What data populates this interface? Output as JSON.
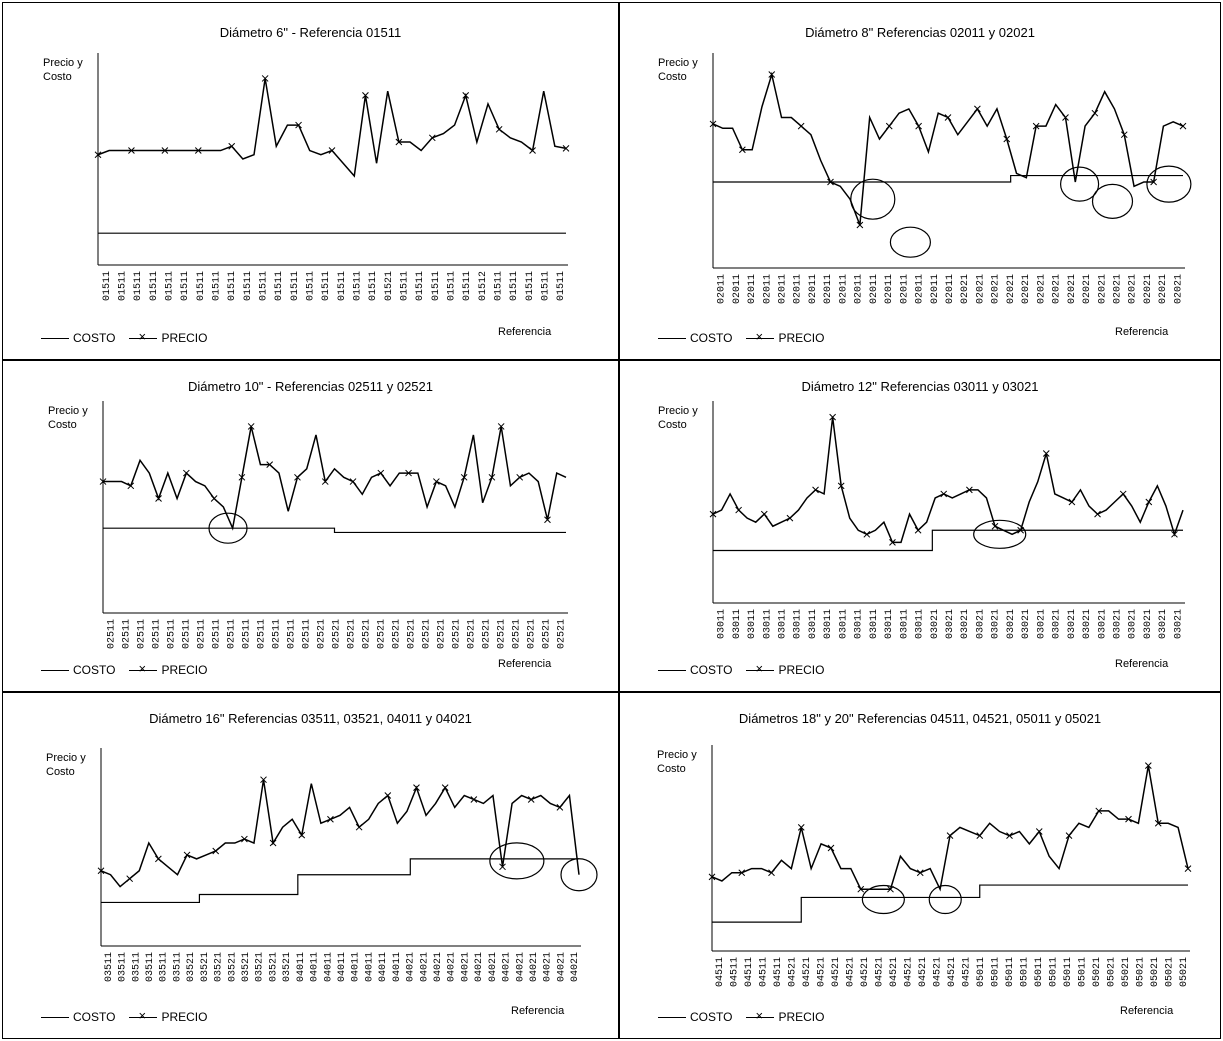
{
  "legend": {
    "costo": "COSTO",
    "precio": "PRECIO"
  },
  "colors": {
    "line": "#000000",
    "background": "#ffffff",
    "circle": "#000000"
  },
  "panels": [
    {
      "title": "Diámetro 6\"  - Referencia 01511",
      "ylabel_line1": "Precio y",
      "ylabel_line2": "Costo",
      "xlabel": "Referencia",
      "ticks": [
        "01511",
        "01511",
        "01511",
        "01511",
        "01511",
        "01511",
        "01511",
        "01511",
        "01511",
        "01511",
        "01511",
        "01511",
        "01511",
        "01511",
        "01511",
        "01511",
        "01511",
        "01511",
        "01521",
        "01511",
        "01511",
        "01511",
        "01511",
        "01511",
        "01512",
        "01511",
        "01511",
        "01511",
        "01511",
        "01511"
      ],
      "chart_data": {
        "type": "line",
        "ylim": [
          0,
          100
        ],
        "series": [
          {
            "name": "COSTO",
            "values": [
              15,
              15,
              15,
              15,
              15,
              15,
              15,
              15,
              15,
              15,
              15,
              15,
              15,
              15,
              15,
              15,
              15,
              15,
              15,
              15,
              15,
              15,
              15,
              15,
              15,
              15,
              15,
              15,
              15,
              15
            ]
          },
          {
            "name": "PRECIO",
            "values": [
              52,
              54,
              54,
              54,
              54,
              54,
              54,
              54,
              54,
              54,
              54,
              54,
              56,
              50,
              52,
              88,
              56,
              66,
              66,
              54,
              52,
              54,
              48,
              42,
              80,
              48,
              82,
              58,
              58,
              54,
              60,
              62,
              66,
              80,
              58,
              76,
              64,
              60,
              58,
              54,
              82,
              56,
              55
            ]
          }
        ],
        "circles": []
      }
    },
    {
      "title": "Diámetro 8\"  Referencias 02011 y 02021",
      "ylabel_line1": "Precio y",
      "ylabel_line2": "Costo",
      "xlabel": "Referencia",
      "ticks": [
        "02011",
        "02011",
        "02011",
        "02011",
        "02011",
        "02011",
        "02011",
        "02011",
        "02011",
        "02011",
        "02011",
        "02011",
        "02011",
        "02011",
        "02011",
        "02011",
        "02021",
        "02021",
        "02021",
        "02021",
        "02021",
        "02021",
        "02021",
        "02021",
        "02021",
        "02021",
        "02021",
        "02021",
        "02021",
        "02021",
        "02021"
      ],
      "chart_data": {
        "type": "line",
        "ylim": [
          0,
          100
        ],
        "series": [
          {
            "name": "COSTO",
            "values": [
              40,
              40,
              40,
              40,
              40,
              40,
              40,
              40,
              40,
              40,
              40,
              40,
              40,
              40,
              40,
              40,
              40,
              40,
              40,
              43,
              43,
              43,
              43,
              43,
              43,
              43,
              43,
              43,
              43,
              43,
              43
            ]
          },
          {
            "name": "PRECIO",
            "values": [
              67,
              65,
              65,
              55,
              55,
              75,
              90,
              70,
              70,
              66,
              62,
              50,
              40,
              38,
              32,
              20,
              70,
              60,
              66,
              72,
              74,
              66,
              54,
              72,
              70,
              62,
              68,
              74,
              66,
              74,
              60,
              44,
              42,
              66,
              66,
              76,
              70,
              40,
              66,
              72,
              82,
              74,
              62,
              38,
              40,
              40,
              66,
              68,
              66
            ]
          }
        ],
        "circles": [
          {
            "i": 0.34,
            "v": 32,
            "rx": 22,
            "ry": 20
          },
          {
            "i": 0.42,
            "v": 12,
            "rx": 20,
            "ry": 15
          },
          {
            "i": 0.78,
            "v": 39,
            "rx": 19,
            "ry": 17
          },
          {
            "i": 0.85,
            "v": 31,
            "rx": 20,
            "ry": 17
          },
          {
            "i": 0.97,
            "v": 39,
            "rx": 22,
            "ry": 18
          }
        ]
      }
    },
    {
      "title": "Diámetro 10\" -  Referencias 02511 y 02521",
      "ylabel_line1": "Precio y",
      "ylabel_line2": "Costo",
      "xlabel": "Referencia",
      "ticks": [
        "02511",
        "02511",
        "02511",
        "02511",
        "02511",
        "02511",
        "02511",
        "02511",
        "02511",
        "02511",
        "02511",
        "02511",
        "02511",
        "02511",
        "02521",
        "02521",
        "02521",
        "02521",
        "02521",
        "02521",
        "02521",
        "02521",
        "02521",
        "02521",
        "02521",
        "02521",
        "02521",
        "02521",
        "02521",
        "02521",
        "02521"
      ],
      "chart_data": {
        "type": "line",
        "ylim": [
          0,
          100
        ],
        "series": [
          {
            "name": "COSTO",
            "values": [
              40,
              40,
              40,
              40,
              40,
              40,
              40,
              40,
              40,
              40,
              40,
              40,
              40,
              40,
              40,
              38,
              38,
              38,
              38,
              38,
              38,
              38,
              38,
              38,
              38,
              38,
              38,
              38,
              38,
              38,
              38
            ]
          },
          {
            "name": "PRECIO",
            "values": [
              62,
              62,
              62,
              60,
              72,
              66,
              54,
              66,
              54,
              66,
              62,
              60,
              54,
              50,
              40,
              64,
              88,
              70,
              70,
              66,
              48,
              64,
              68,
              84,
              62,
              68,
              64,
              62,
              56,
              64,
              66,
              60,
              66,
              66,
              66,
              50,
              62,
              60,
              50,
              64,
              84,
              52,
              64,
              88,
              60,
              64,
              66,
              62,
              44,
              66,
              64
            ]
          }
        ],
        "circles": [
          {
            "i": 0.27,
            "v": 40,
            "rx": 19,
            "ry": 15
          }
        ]
      }
    },
    {
      "title": "Diámetro 12\" Referencias  03011 y 03021",
      "ylabel_line1": "Precio y",
      "ylabel_line2": "Costo",
      "xlabel": "Referencia",
      "ticks": [
        "03011",
        "03011",
        "03011",
        "03011",
        "03011",
        "03011",
        "03011",
        "03011",
        "03011",
        "03011",
        "03011",
        "03011",
        "03011",
        "03011",
        "03021",
        "03021",
        "03021",
        "03021",
        "03021",
        "03021",
        "03021",
        "03021",
        "03021",
        "03021",
        "03021",
        "03021",
        "03021",
        "03021",
        "03021",
        "03021",
        "03021"
      ],
      "chart_data": {
        "type": "line",
        "ylim": [
          0,
          100
        ],
        "series": [
          {
            "name": "COSTO",
            "values": [
              26,
              26,
              26,
              26,
              26,
              26,
              26,
              26,
              26,
              26,
              26,
              26,
              26,
              26,
              36,
              36,
              36,
              36,
              36,
              36,
              36,
              36,
              36,
              36,
              36,
              36,
              36,
              36,
              36,
              36,
              36
            ]
          },
          {
            "name": "PRECIO",
            "values": [
              44,
              46,
              54,
              46,
              42,
              40,
              44,
              38,
              40,
              42,
              46,
              52,
              56,
              54,
              92,
              58,
              42,
              36,
              34,
              36,
              40,
              30,
              30,
              44,
              36,
              40,
              52,
              54,
              52,
              54,
              56,
              56,
              52,
              38,
              36,
              34,
              36,
              50,
              60,
              74,
              54,
              52,
              50,
              56,
              48,
              44,
              46,
              50,
              54,
              48,
              40,
              50,
              58,
              48,
              34,
              46
            ]
          }
        ],
        "circles": [
          {
            "i": 0.61,
            "v": 34,
            "rx": 26,
            "ry": 14
          }
        ]
      }
    },
    {
      "title": "Diámetro 16\" Referencias 03511, 03521, 04011 y 04021",
      "ylabel_line1": "Precio y",
      "ylabel_line2": "Costo",
      "xlabel": "Referencia",
      "ticks": [
        "03511",
        "03511",
        "03511",
        "03511",
        "03511",
        "03511",
        "03521",
        "03521",
        "03521",
        "03521",
        "03521",
        "03521",
        "03521",
        "03521",
        "04011",
        "04011",
        "04011",
        "04011",
        "04011",
        "04011",
        "04011",
        "04011",
        "04021",
        "04021",
        "04021",
        "04021",
        "04021",
        "04021",
        "04021",
        "04021",
        "04021",
        "04021",
        "04021",
        "04021",
        "04021"
      ],
      "chart_data": {
        "type": "line",
        "ylim": [
          0,
          100
        ],
        "series": [
          {
            "name": "COSTO",
            "values": [
              22,
              22,
              22,
              22,
              22,
              22,
              22,
              26,
              26,
              26,
              26,
              26,
              26,
              26,
              36,
              36,
              36,
              36,
              36,
              36,
              36,
              36,
              44,
              44,
              44,
              44,
              44,
              44,
              44,
              44,
              44,
              44,
              44,
              44,
              44
            ]
          },
          {
            "name": "PRECIO",
            "values": [
              38,
              36,
              30,
              34,
              38,
              52,
              44,
              40,
              36,
              46,
              44,
              46,
              48,
              52,
              52,
              54,
              52,
              84,
              52,
              60,
              64,
              56,
              82,
              62,
              64,
              66,
              70,
              60,
              64,
              72,
              76,
              62,
              68,
              80,
              66,
              72,
              80,
              70,
              76,
              74,
              72,
              76,
              40,
              72,
              76,
              74,
              76,
              72,
              70,
              76,
              36
            ]
          }
        ],
        "circles": [
          {
            "i": 0.87,
            "v": 43,
            "rx": 27,
            "ry": 18
          },
          {
            "i": 1.0,
            "v": 36,
            "rx": 18,
            "ry": 16
          }
        ]
      }
    },
    {
      "title": "Diámetros 18\" y 20\" Referencias  04511, 04521, 05011 y 05021",
      "ylabel_line1": "Precio y",
      "ylabel_line2": "Costo",
      "xlabel": "Referencia",
      "ticks": [
        "04511",
        "04511",
        "04511",
        "04511",
        "04511",
        "04521",
        "04521",
        "04521",
        "04521",
        "04521",
        "04521",
        "04521",
        "04521",
        "04521",
        "04521",
        "04521",
        "04521",
        "04521",
        "05011",
        "05011",
        "05011",
        "05011",
        "05011",
        "05011",
        "05011",
        "05011",
        "05021",
        "05021",
        "05021",
        "05021",
        "05021",
        "05021",
        "05021"
      ],
      "chart_data": {
        "type": "line",
        "ylim": [
          0,
          100
        ],
        "series": [
          {
            "name": "COSTO",
            "values": [
              14,
              14,
              14,
              14,
              14,
              14,
              26,
              26,
              26,
              26,
              26,
              26,
              26,
              26,
              26,
              26,
              26,
              26,
              32,
              32,
              32,
              32,
              32,
              32,
              32,
              32,
              32,
              32,
              32,
              32,
              32,
              32,
              32
            ]
          },
          {
            "name": "PRECIO",
            "values": [
              36,
              34,
              38,
              38,
              40,
              40,
              38,
              44,
              40,
              60,
              40,
              52,
              50,
              40,
              40,
              30,
              30,
              30,
              30,
              46,
              40,
              38,
              40,
              30,
              56,
              60,
              58,
              56,
              62,
              58,
              56,
              58,
              52,
              58,
              46,
              40,
              56,
              62,
              60,
              68,
              68,
              64,
              64,
              62,
              90,
              62,
              62,
              60,
              40
            ]
          }
        ],
        "circles": [
          {
            "i": 0.36,
            "v": 25,
            "rx": 21,
            "ry": 14
          },
          {
            "i": 0.49,
            "v": 25,
            "rx": 16,
            "ry": 14
          }
        ]
      }
    }
  ]
}
